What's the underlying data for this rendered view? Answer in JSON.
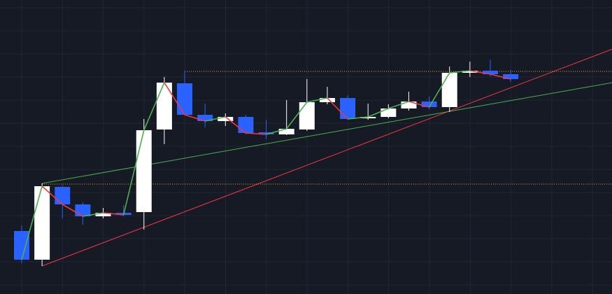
{
  "chart_data": {
    "type": "candlestick",
    "background": "#161a25",
    "grid": true,
    "grid_color": "#222634",
    "up_color": "#ffffff",
    "down_color": "#2962ff",
    "close_line": {
      "up_color": "#4caf50",
      "down_color": "#f23645"
    },
    "ylim": [
      0,
      420
    ],
    "candles": [
      [
        90,
        98,
        44,
        49
      ],
      [
        49,
        158,
        40,
        154
      ],
      [
        153,
        155,
        108,
        128
      ],
      [
        128,
        131,
        99,
        111
      ],
      [
        111,
        123,
        108,
        116
      ],
      [
        116,
        127,
        111,
        113
      ],
      [
        117,
        250,
        92,
        234
      ],
      [
        235,
        310,
        214,
        302
      ],
      [
        301,
        319,
        256,
        256
      ],
      [
        256,
        272,
        238,
        247
      ],
      [
        247,
        258,
        240,
        253
      ],
      [
        253,
        256,
        228,
        230
      ],
      [
        231,
        249,
        221,
        228
      ],
      [
        228,
        277,
        227,
        236
      ],
      [
        235,
        307,
        233,
        274
      ],
      [
        274,
        296,
        271,
        280
      ],
      [
        280,
        284,
        249,
        250
      ],
      [
        251,
        272,
        249,
        253
      ],
      [
        253,
        271,
        251,
        265
      ],
      [
        265,
        289,
        262,
        275
      ],
      [
        275,
        282,
        264,
        267
      ],
      [
        267,
        325,
        260,
        316
      ],
      [
        316,
        332,
        310,
        319
      ],
      [
        319,
        335,
        311,
        314
      ],
      [
        314,
        320,
        303,
        307
      ]
    ],
    "drawings": [
      {
        "color": "#f23645",
        "style": "solid",
        "points": [
          [
            1,
            40
          ],
          [
            29,
            350
          ]
        ]
      },
      {
        "color": "#4caf50",
        "style": "solid",
        "points": [
          [
            1,
            158
          ],
          [
            29,
            302
          ]
        ]
      },
      {
        "color": "#d9a63a",
        "style": "dotted",
        "points": [
          [
            8,
            318
          ],
          [
            29,
            318
          ]
        ]
      },
      {
        "color": "#d9a63a",
        "style": "dotted",
        "points": [
          [
            1,
            157
          ],
          [
            29,
            157
          ]
        ]
      }
    ]
  }
}
